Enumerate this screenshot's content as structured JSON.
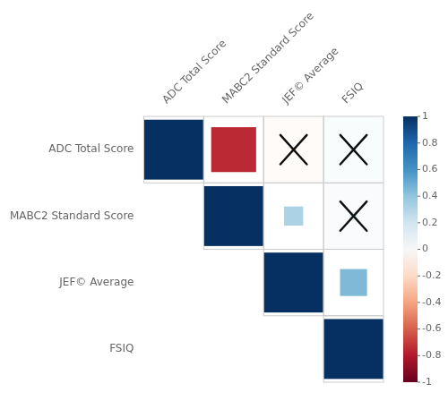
{
  "chart_data": {
    "type": "heatmap",
    "categories": [
      "ADC Total Score",
      "MABC2 Standard Score",
      "JEF© Average",
      "FSIQ"
    ],
    "values": [
      [
        1.0,
        -0.75,
        -0.1,
        0.12
      ],
      [
        null,
        1.0,
        0.32,
        0.14
      ],
      [
        null,
        null,
        1.0,
        0.45
      ],
      [
        null,
        null,
        null,
        1.0
      ]
    ],
    "significant": [
      [
        true,
        true,
        false,
        false
      ],
      [
        null,
        true,
        true,
        false
      ],
      [
        null,
        null,
        true,
        true
      ],
      [
        null,
        null,
        null,
        true
      ]
    ],
    "color": [
      "#67001f",
      "#b2182b",
      "#d6604d",
      "#f4a582",
      "#fddbc7",
      "#f7f7f7",
      "#d1e5f0",
      "#92c5de",
      "#4393c3",
      "#2166ac",
      "#053061"
    ],
    "colorbar": {
      "range": [
        -1,
        1
      ],
      "ticks": [
        -1,
        -0.8,
        -0.6,
        -0.4,
        -0.2,
        0,
        0.2,
        0.4,
        0.6,
        0.8,
        1
      ]
    },
    "grid": false
  }
}
